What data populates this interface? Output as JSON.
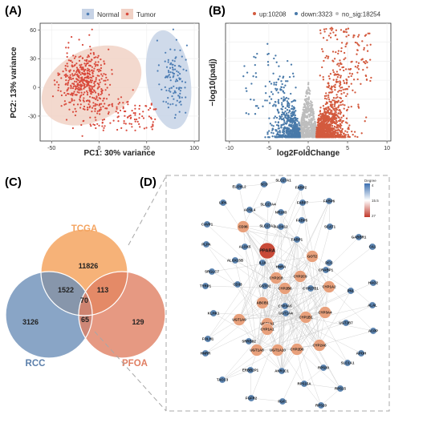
{
  "panels": {
    "a": {
      "label": "(A)"
    },
    "b": {
      "label": "(B)"
    },
    "c": {
      "label": "(C)"
    },
    "d": {
      "label": "(D)"
    }
  },
  "colors": {
    "normal": "#4f7fb5",
    "normal_fill": "#c7d3e6",
    "tumor": "#d94a3c",
    "tumor_fill": "#f1d2c6",
    "up": "#d35a3e",
    "down": "#4879a9",
    "nosig": "#bdbdbd",
    "tcga": "#f4a460",
    "rcc": "#6b8fb8",
    "pfoa": "#e07f63",
    "node_blue": "#5b84b1",
    "node_orange": "#e8a07b",
    "node_red": "#c94a38",
    "edge": "#c8c8c8"
  },
  "chart_data": [
    {
      "type": "scatter",
      "panel": "A",
      "xlabel": "PC1: 30% variance",
      "ylabel": "PC2: 13% variance",
      "xlim": [
        -62,
        105
      ],
      "ylim": [
        -56,
        67
      ],
      "xticks": [
        -50,
        0,
        50,
        100
      ],
      "yticks": [
        -30,
        0,
        30,
        60
      ],
      "grid": true,
      "legend_position": "top",
      "series": [
        {
          "name": "Normal",
          "cluster": {
            "cx": 78,
            "cy": 10,
            "sx": 7,
            "sy": 20,
            "n": 110
          }
        },
        {
          "name": "Tumor",
          "cluster": {
            "cx": -15,
            "cy": 5,
            "sx": 13,
            "sy": 17,
            "n": 560
          }
        }
      ],
      "ellipses": [
        {
          "series": "Tumor",
          "cx": -8,
          "cy": 2,
          "rx": 56,
          "ry": 37,
          "angle_deg": -28
        },
        {
          "series": "Normal",
          "cx": 73,
          "cy": 8,
          "rx": 23,
          "ry": 52,
          "angle_deg": -8
        }
      ]
    },
    {
      "type": "scatter",
      "panel": "B",
      "xlabel": "log2FoldChange",
      "ylabel": "−log10(padj)",
      "xlim": [
        -10.5,
        10.5
      ],
      "ylim": [
        -10,
        300
      ],
      "xticks": [
        -10,
        -5,
        0,
        5,
        10
      ],
      "yticks": [],
      "grid": true,
      "legend_position": "top",
      "series": [
        {
          "name": "up",
          "count": 10208,
          "legend_label": "up:10208"
        },
        {
          "name": "down",
          "count": 3323,
          "legend_label": "down:3323"
        },
        {
          "name": "no_sig",
          "count": 18254,
          "legend_label": "no_sig:18254"
        }
      ]
    },
    {
      "type": "venn",
      "panel": "C",
      "sets": [
        {
          "name": "TCGA",
          "label": "TCGA"
        },
        {
          "name": "RCC",
          "label": "RCC"
        },
        {
          "name": "PFOA",
          "label": "PFOA"
        }
      ],
      "regions": [
        {
          "sets": [
            "TCGA"
          ],
          "value": 11826
        },
        {
          "sets": [
            "RCC"
          ],
          "value": 3126
        },
        {
          "sets": [
            "PFOA"
          ],
          "value": 129
        },
        {
          "sets": [
            "TCGA",
            "RCC"
          ],
          "value": 1522
        },
        {
          "sets": [
            "TCGA",
            "PFOA"
          ],
          "value": 113
        },
        {
          "sets": [
            "RCC",
            "PFOA"
          ],
          "value": 65
        },
        {
          "sets": [
            "TCGA",
            "RCC",
            "PFOA"
          ],
          "value": 70
        }
      ]
    },
    {
      "type": "network",
      "panel": "D",
      "legend": {
        "title": "Degree",
        "max_label": "4",
        "mid_label": "15.5",
        "min_label": "27"
      },
      "nodes": [
        {
          "id": "ELOVL2",
          "tier": 0
        },
        {
          "id": "SCD",
          "tier": 0
        },
        {
          "id": "SLC27A1",
          "tier": 0
        },
        {
          "id": "FABP2",
          "tier": 0
        },
        {
          "id": "LIPA",
          "tier": 0
        },
        {
          "id": "ACSL4",
          "tier": 0
        },
        {
          "id": "SLC27A4",
          "tier": 0
        },
        {
          "id": "NR1H3",
          "tier": 0
        },
        {
          "id": "FABP7",
          "tier": 0
        },
        {
          "id": "FABP6",
          "tier": 0
        },
        {
          "id": "CAVP1",
          "tier": 0
        },
        {
          "id": "CD36",
          "tier": 1
        },
        {
          "id": "SLC27A2",
          "tier": 0
        },
        {
          "id": "ALOX12",
          "tier": 0
        },
        {
          "id": "FABP5",
          "tier": 0
        },
        {
          "id": "SCAT1",
          "tier": 0
        },
        {
          "id": "GABBR1",
          "tier": 0
        },
        {
          "id": "PLPA",
          "tier": 0
        },
        {
          "id": "ALOX5",
          "tier": 0
        },
        {
          "id": "PPARA",
          "tier": 2
        },
        {
          "id": "FABP1",
          "tier": 0
        },
        {
          "id": "GOT2",
          "tier": 1
        },
        {
          "id": "DCC",
          "tier": 0
        },
        {
          "id": "CA1",
          "tier": 0
        },
        {
          "id": "SRGLC7",
          "tier": 0
        },
        {
          "id": "ALOX15B",
          "tier": 0
        },
        {
          "id": "IL10",
          "tier": 0
        },
        {
          "id": "HNRA",
          "tier": 0
        },
        {
          "id": "CRABP1",
          "tier": 0
        },
        {
          "id": "CYP2C8",
          "tier": 1
        },
        {
          "id": "CYP2C9",
          "tier": 1
        },
        {
          "id": "CYP27B1",
          "tier": 0
        },
        {
          "id": "TYRP1",
          "tier": 0
        },
        {
          "id": "CD33",
          "tier": 0
        },
        {
          "id": "GSTO2",
          "tier": 0
        },
        {
          "id": "CYP2B6",
          "tier": 1
        },
        {
          "id": "CYP1A2",
          "tier": 1
        },
        {
          "id": "HAO2",
          "tier": 0
        },
        {
          "id": "ABCB1",
          "tier": 1
        },
        {
          "id": "CYP3A5",
          "tier": 0
        },
        {
          "id": "CYP3A4",
          "tier": 1
        },
        {
          "id": "PNL",
          "tier": 0
        },
        {
          "id": "KLHK1",
          "tier": 0
        },
        {
          "id": "UGT1A9",
          "tier": 1
        },
        {
          "id": "UGT1A4",
          "tier": 0
        },
        {
          "id": "CYP1B1",
          "tier": 1
        },
        {
          "id": "ALAL",
          "tier": 0
        },
        {
          "id": "UGT1A1",
          "tier": 1
        },
        {
          "id": "UGT2B7",
          "tier": 0
        },
        {
          "id": "FOLH1",
          "tier": 0
        },
        {
          "id": "CYP1A1",
          "tier": 1
        },
        {
          "id": "SRRB82",
          "tier": 0
        },
        {
          "id": "HNRR",
          "tier": 0
        },
        {
          "id": "UGT1A8",
          "tier": 1
        },
        {
          "id": "UGT1A10",
          "tier": 1
        },
        {
          "id": "CYP2D6",
          "tier": 1
        },
        {
          "id": "CYP2A6",
          "tier": 1
        },
        {
          "id": "APOH",
          "tier": 0
        },
        {
          "id": "ACPP",
          "tier": 0
        },
        {
          "id": "AKR1C1",
          "tier": 0
        },
        {
          "id": "SLC1A1",
          "tier": 0
        },
        {
          "id": "TACC3",
          "tier": 0
        },
        {
          "id": "ERBB2P1",
          "tier": 0
        },
        {
          "id": "RPS30",
          "tier": 0
        },
        {
          "id": "FGFR2",
          "tier": 0
        },
        {
          "id": "FGF1",
          "tier": 0
        },
        {
          "id": "RPS15A",
          "tier": 0
        },
        {
          "id": "RPS15",
          "tier": 0
        },
        {
          "id": "RPS20",
          "tier": 0
        }
      ]
    }
  ]
}
